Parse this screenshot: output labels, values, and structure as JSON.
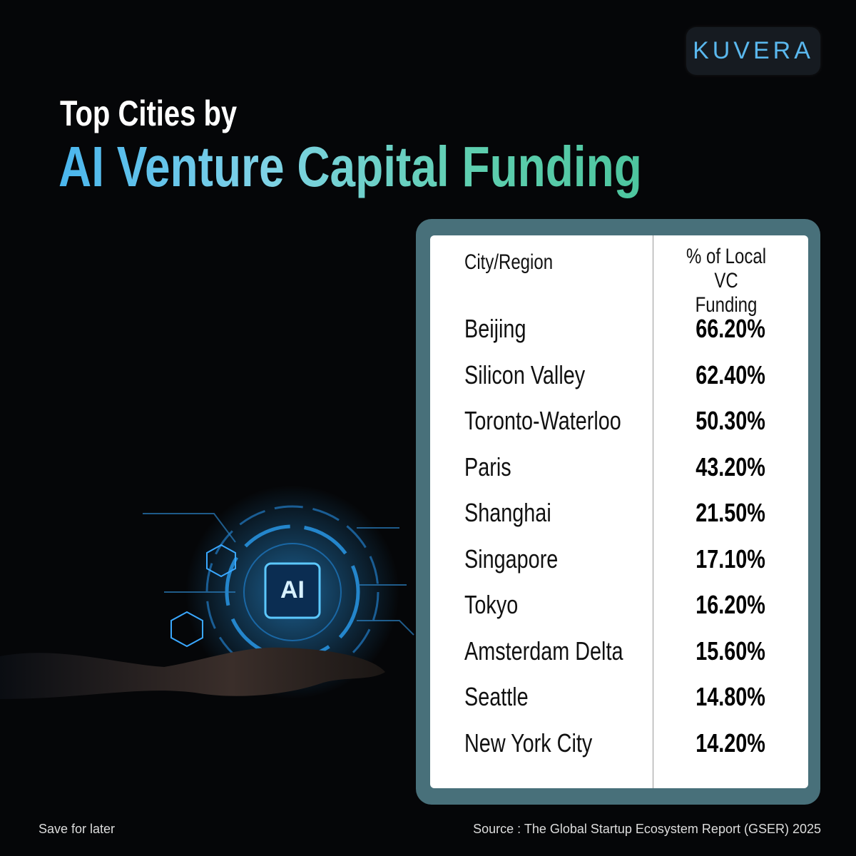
{
  "logo": "KUVERA",
  "title": {
    "line1": "Top Cities by",
    "line2": "AI Venture Capital Funding"
  },
  "illustration": {
    "chip_label": "AI"
  },
  "table": {
    "header": [
      "City/Region",
      "% of Local VC Funding"
    ],
    "rows": [
      [
        "Beijing",
        "66.20%"
      ],
      [
        "Silicon Valley",
        "62.40%"
      ],
      [
        "Toronto-Waterloo",
        "50.30%"
      ],
      [
        "Paris",
        "43.20%"
      ],
      [
        "Shanghai",
        "21.50%"
      ],
      [
        "Singapore",
        "17.10%"
      ],
      [
        "Tokyo",
        "16.20%"
      ],
      [
        "Amsterdam Delta",
        "15.60%"
      ],
      [
        "Seattle",
        "14.80%"
      ],
      [
        "New York City",
        "14.20%"
      ]
    ]
  },
  "footer": {
    "left": "Save for later",
    "right": "Source : The Global Startup Ecosystem Report (GSER) 2025"
  }
}
